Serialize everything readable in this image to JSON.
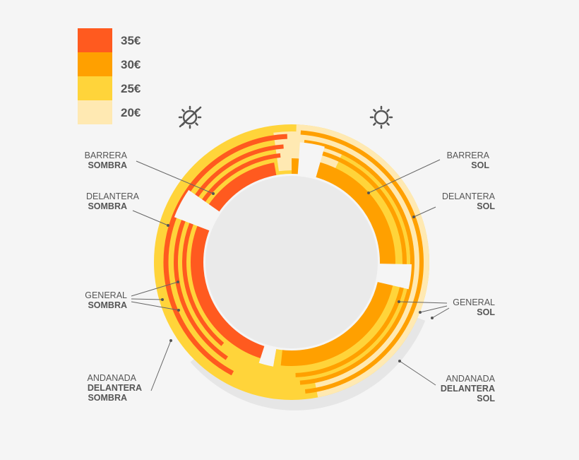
{
  "legend": [
    {
      "label": "35€",
      "color": "#ff5a1f"
    },
    {
      "label": "30€",
      "color": "#ffa000"
    },
    {
      "label": "25€",
      "color": "#ffd43a"
    },
    {
      "label": "20€",
      "color": "#ffe9b2"
    }
  ],
  "icons": {
    "shade": "sun-crossed-icon",
    "sun": "sun-icon"
  },
  "sections": {
    "barrera_sombra": {
      "line1": "BARRERA",
      "line2": "SOMBRA"
    },
    "delantera_sombra": {
      "line1": "DELANTERA",
      "line2": "SOMBRA"
    },
    "general_sombra": {
      "line1": "GENERAL",
      "line2": "SOMBRA"
    },
    "andanada_sombra": {
      "line1": "ANDANADA",
      "line2": "DELANTERA",
      "line3": "SOMBRA"
    },
    "barrera_sol": {
      "line1": "BARRERA",
      "line2": "SOL"
    },
    "delantera_sol": {
      "line1": "DELANTERA",
      "line2": "SOL"
    },
    "general_sol": {
      "line1": "GENERAL",
      "line2": "SOL"
    },
    "andanada_sol": {
      "line1": "ANDANADA",
      "line2": "DELANTERA",
      "line3": "SOL"
    }
  },
  "colors": {
    "ring_outer_sombra": "#ffd43a",
    "ring_outer_sol": "#ffe9b2",
    "arena": "#eaeaea",
    "gap": "#f5f5f5",
    "shadow": "#e6e6e6"
  }
}
